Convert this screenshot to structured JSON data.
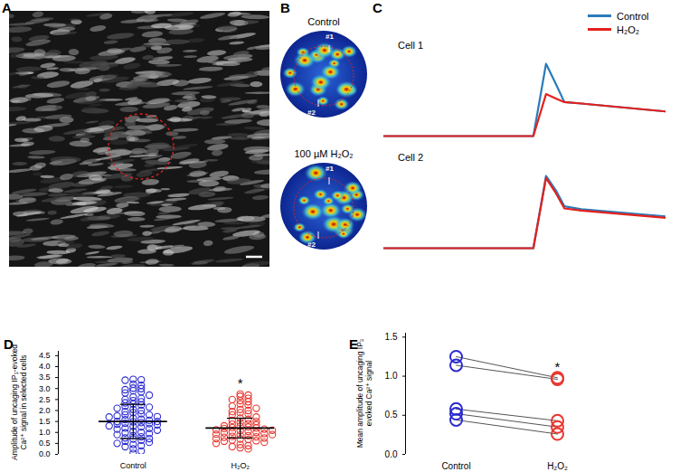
{
  "panel_labels": [
    "A",
    "B",
    "C",
    "D",
    "E"
  ],
  "heatmaps": {
    "titles": [
      "Control",
      "100 µM H₂O₂"
    ],
    "cells": [
      "#1",
      "#2"
    ]
  },
  "chart_data": [
    {
      "type": "line",
      "title": "Cell 1",
      "x": [
        0,
        53,
        57.5,
        61,
        64,
        70,
        100
      ],
      "series": [
        {
          "name": "Control",
          "color": "#2b7bba",
          "values": [
            0,
            0,
            1.0,
            0.72,
            0.47,
            0.45,
            0.34
          ]
        },
        {
          "name": "H₂O₂",
          "color": "#e3211c",
          "values": [
            0,
            0,
            0.58,
            0.52,
            0.47,
            0.45,
            0.34
          ]
        }
      ],
      "xlim": [
        0,
        100
      ],
      "ylim": [
        -0.05,
        1.1
      ],
      "tick_labels": false,
      "legend": "top-right"
    },
    {
      "type": "line",
      "title": "Cell 2",
      "x": [
        0,
        53,
        57.5,
        61,
        64,
        70,
        100
      ],
      "series": [
        {
          "name": "Control",
          "color": "#2b7bba",
          "values": [
            0,
            0,
            1.0,
            0.8,
            0.58,
            0.54,
            0.44
          ]
        },
        {
          "name": "H₂O₂",
          "color": "#e3211c",
          "values": [
            0,
            0,
            0.97,
            0.76,
            0.55,
            0.52,
            0.42
          ]
        }
      ],
      "xlim": [
        0,
        100
      ],
      "ylim": [
        -0.05,
        1.1
      ],
      "tick_labels": false
    },
    {
      "type": "scatter",
      "ylabel": "Amplitude of uncaging IP₃-evoked Ca²⁺ signal in selected cells",
      "categories": [
        "Control",
        "H₂O₂"
      ],
      "colors": [
        "#2b2bd0",
        "#e8362f"
      ],
      "marker": "circle",
      "values": [
        [
          3.42,
          3.4,
          3.38,
          3.2,
          3.15,
          3.02,
          3.0,
          2.95,
          2.9,
          2.85,
          2.8,
          2.7,
          2.62,
          2.55,
          2.5,
          2.45,
          2.4,
          2.35,
          2.3,
          2.25,
          2.2,
          2.15,
          2.1,
          2.05,
          2.0,
          1.95,
          1.9,
          1.85,
          1.8,
          1.8,
          1.75,
          1.72,
          1.7,
          1.65,
          1.6,
          1.58,
          1.55,
          1.5,
          1.5,
          1.48,
          1.45,
          1.42,
          1.4,
          1.38,
          1.35,
          1.3,
          1.28,
          1.25,
          1.2,
          1.18,
          1.15,
          1.1,
          1.05,
          1.0,
          0.98,
          0.95,
          0.9,
          0.85,
          0.8,
          0.75,
          0.72,
          0.7,
          0.65,
          0.6,
          0.55,
          0.5,
          0.45,
          0.4,
          0.35,
          0.25,
          0.15,
          0.05
        ],
        [
          2.75,
          2.7,
          2.65,
          2.55,
          2.5,
          2.45,
          2.4,
          2.3,
          2.25,
          2.2,
          2.1,
          2.05,
          2.0,
          1.95,
          1.9,
          1.85,
          1.8,
          1.7,
          1.65,
          1.6,
          1.55,
          1.5,
          1.45,
          1.4,
          1.38,
          1.35,
          1.3,
          1.28,
          1.25,
          1.22,
          1.2,
          1.18,
          1.15,
          1.12,
          1.1,
          1.08,
          1.05,
          1.02,
          1.0,
          0.98,
          0.95,
          0.92,
          0.9,
          0.88,
          0.85,
          0.82,
          0.8,
          0.78,
          0.75,
          0.72,
          0.7,
          0.68,
          0.65,
          0.62,
          0.6,
          0.55,
          0.5,
          0.45,
          0.4,
          0.35,
          0.3,
          0.25
        ]
      ],
      "means": [
        1.5,
        1.2
      ],
      "sd": [
        0.78,
        0.45
      ],
      "ylim": [
        0,
        4.7
      ],
      "yticks": [
        {
          "value": 0,
          "label": "0.0"
        },
        0.5,
        {
          "value": 1,
          "label": "1.0"
        },
        1.5,
        {
          "value": 2,
          "label": "2.0"
        },
        2.5,
        {
          "value": 3,
          "label": "3.0"
        },
        3.5,
        {
          "value": 4,
          "label": "4.0"
        },
        4.5
      ],
      "annotations": [
        {
          "text": "*",
          "category": "H₂O₂"
        }
      ]
    },
    {
      "type": "line",
      "ylabel": "Mean amplitude of uncaging IP₃ evoked Ca²⁺ signal",
      "categories": [
        "Control",
        "H₂O₂"
      ],
      "colors": [
        "#2b2bd0",
        "#e8362f"
      ],
      "marker": "circle",
      "series": [
        {
          "values": [
            1.25,
            0.98
          ]
        },
        {
          "values": [
            1.14,
            0.96
          ]
        },
        {
          "values": [
            0.58,
            0.43
          ]
        },
        {
          "values": [
            0.52,
            0.35
          ]
        },
        {
          "values": [
            0.44,
            0.26
          ]
        }
      ],
      "ylim": [
        0,
        1.55
      ],
      "yticks": [
        {
          "value": 0,
          "label": "0.0"
        },
        0.5,
        {
          "value": 1,
          "label": "1.0"
        },
        1.5
      ],
      "annotations": [
        {
          "text": "*",
          "category": "H₂O₂"
        }
      ]
    }
  ]
}
